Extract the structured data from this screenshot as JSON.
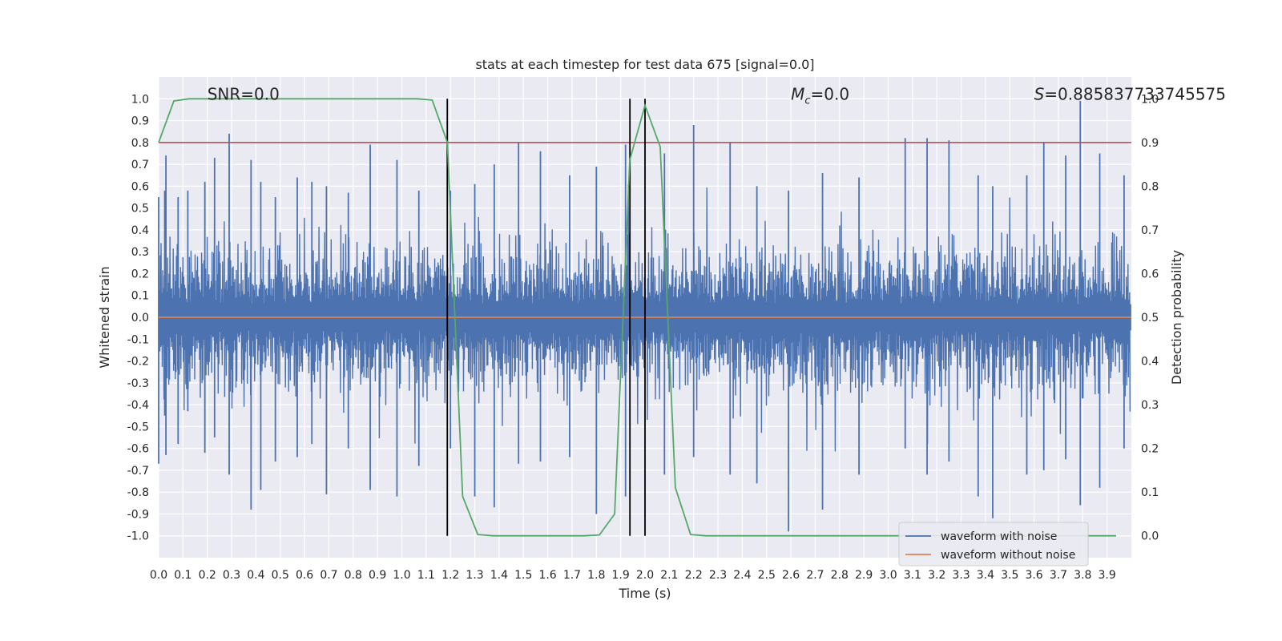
{
  "chart_data": {
    "type": "line",
    "title": "stats at each timestep for test data 675 [signal=0.0]",
    "xlabel": "Time (s)",
    "ylabel": "Whitened strain",
    "y2label": "Detection probability",
    "xlim": [
      0.0,
      4.0
    ],
    "ylim": [
      -1.1,
      1.1
    ],
    "y2lim": [
      -0.05,
      1.05
    ],
    "x_ticks": [
      0.0,
      0.1,
      0.2,
      0.3,
      0.4,
      0.5,
      0.6,
      0.7,
      0.8,
      0.9,
      1.0,
      1.1,
      1.2,
      1.3,
      1.4,
      1.5,
      1.6,
      1.7,
      1.8,
      1.9,
      2.0,
      2.1,
      2.2,
      2.3,
      2.4,
      2.5,
      2.6,
      2.7,
      2.8,
      2.9,
      3.0,
      3.1,
      3.2,
      3.3,
      3.4,
      3.5,
      3.6,
      3.7,
      3.8,
      3.9
    ],
    "x_tick_labels": [
      "0.0",
      "0.1",
      "0.2",
      "0.3",
      "0.4",
      "0.5",
      "0.6",
      "0.7",
      "0.8",
      "0.9",
      "1.0",
      "1.1",
      "1.2",
      "1.3",
      "1.4",
      "1.5",
      "1.6",
      "1.7",
      "1.8",
      "1.9",
      "2.0",
      "2.1",
      "2.2",
      "2.3",
      "2.4",
      "2.5",
      "2.6",
      "2.7",
      "2.8",
      "2.9",
      "3.0",
      "3.1",
      "3.2",
      "3.3",
      "3.4",
      "3.5",
      "3.6",
      "3.7",
      "3.8",
      "3.9"
    ],
    "y_ticks": [
      1.0,
      0.9,
      0.8,
      0.7,
      0.6,
      0.5,
      0.4,
      0.3,
      0.2,
      0.1,
      0.0,
      -0.1,
      -0.2,
      -0.3,
      -0.4,
      -0.5,
      -0.6,
      -0.7,
      -0.8,
      -0.9,
      -1.0
    ],
    "y_tick_labels": [
      "1.0",
      "0.9",
      "0.8",
      "0.7",
      "0.6",
      "0.5",
      "0.4",
      "0.3",
      "0.2",
      "0.1",
      "0.0",
      "-0.1",
      "-0.2",
      "-0.3",
      "-0.4",
      "-0.5",
      "-0.6",
      "-0.7",
      "-0.8",
      "-0.9",
      "-1.0"
    ],
    "y2_ticks": [
      1.0,
      0.9,
      0.8,
      0.7,
      0.6,
      0.5,
      0.4,
      0.3,
      0.2,
      0.1,
      0.0
    ],
    "y2_tick_labels": [
      "1.0",
      "0.9",
      "0.8",
      "0.7",
      "0.6",
      "0.5",
      "0.4",
      "0.3",
      "0.2",
      "0.1",
      "0.0"
    ],
    "annotations": [
      {
        "id": "snr",
        "text": "SNR=0.0",
        "x": 0.2,
        "y": 1.025
      },
      {
        "id": "mc",
        "text": "=0.0",
        "symbol": "M",
        "subscript": "c",
        "x": 2.6,
        "y": 1.025
      },
      {
        "id": "s",
        "text": "=0.885837733745575",
        "symbol": "S",
        "x": 3.6,
        "y": 1.025
      }
    ],
    "threshold": {
      "y": 0.8,
      "color": "#c44e52"
    },
    "vertical_lines": [
      1.187,
      1.938,
      2.0
    ],
    "series": [
      {
        "name": "waveform with noise",
        "color": "#4c72b0",
        "axis": "left",
        "envelope_peaks": [
          {
            "x": 0.0,
            "max": 0.55,
            "min": -0.67
          },
          {
            "x": 0.025,
            "max": 0.58,
            "min": -0.45
          },
          {
            "x": 0.03,
            "max": 0.74,
            "min": -0.63
          },
          {
            "x": 0.08,
            "max": 0.55,
            "min": -0.58
          },
          {
            "x": 0.12,
            "max": 0.58,
            "min": -0.43
          },
          {
            "x": 0.19,
            "max": 0.62,
            "min": -0.62
          },
          {
            "x": 0.23,
            "max": 0.73,
            "min": -0.55
          },
          {
            "x": 0.29,
            "max": 0.84,
            "min": -0.72
          },
          {
            "x": 0.38,
            "max": 0.72,
            "min": -0.88
          },
          {
            "x": 0.42,
            "max": 0.62,
            "min": -0.79
          },
          {
            "x": 0.48,
            "max": 0.55,
            "min": -0.66
          },
          {
            "x": 0.57,
            "max": 0.64,
            "min": -0.64
          },
          {
            "x": 0.63,
            "max": 0.62,
            "min": -0.58
          },
          {
            "x": 0.69,
            "max": 0.6,
            "min": -0.81
          },
          {
            "x": 0.78,
            "max": 0.57,
            "min": -0.6
          },
          {
            "x": 0.87,
            "max": 0.79,
            "min": -0.79
          },
          {
            "x": 0.98,
            "max": 0.72,
            "min": -0.82
          },
          {
            "x": 1.07,
            "max": 0.58,
            "min": -0.68
          },
          {
            "x": 1.2,
            "max": 0.58,
            "min": -0.6
          },
          {
            "x": 1.3,
            "max": 0.61,
            "min": -0.82
          },
          {
            "x": 1.38,
            "max": 0.7,
            "min": -0.87
          },
          {
            "x": 1.48,
            "max": 0.8,
            "min": -0.67
          },
          {
            "x": 1.57,
            "max": 0.76,
            "min": -0.66
          },
          {
            "x": 1.69,
            "max": 0.65,
            "min": -0.64
          },
          {
            "x": 1.8,
            "max": 0.69,
            "min": -0.9
          },
          {
            "x": 1.92,
            "max": 0.79,
            "min": -0.82
          },
          {
            "x": 2.08,
            "max": 0.75,
            "min": -0.72
          },
          {
            "x": 2.2,
            "max": 0.88,
            "min": -0.64
          },
          {
            "x": 2.35,
            "max": 0.8,
            "min": -0.72
          },
          {
            "x": 2.46,
            "max": 0.6,
            "min": -0.76
          },
          {
            "x": 2.59,
            "max": 0.58,
            "min": -0.98
          },
          {
            "x": 2.73,
            "max": 0.66,
            "min": -0.88
          },
          {
            "x": 2.88,
            "max": 0.64,
            "min": -0.72
          },
          {
            "x": 3.07,
            "max": 0.82,
            "min": -0.6
          },
          {
            "x": 3.16,
            "max": 0.82,
            "min": -0.72
          },
          {
            "x": 3.25,
            "max": 0.81,
            "min": -0.66
          },
          {
            "x": 3.37,
            "max": 0.65,
            "min": -0.82
          },
          {
            "x": 3.43,
            "max": 0.6,
            "min": -0.92
          },
          {
            "x": 3.57,
            "max": 0.65,
            "min": -0.72
          },
          {
            "x": 3.64,
            "max": 0.8,
            "min": -0.7
          },
          {
            "x": 3.73,
            "max": 0.74,
            "min": -0.65
          },
          {
            "x": 3.79,
            "max": 0.99,
            "min": -0.86
          },
          {
            "x": 3.87,
            "max": 0.75,
            "min": -0.78
          },
          {
            "x": 3.97,
            "max": 0.65,
            "min": -0.6
          }
        ]
      },
      {
        "name": "waveform without noise",
        "color": "#dd8452",
        "axis": "left",
        "x": [
          0.0,
          4.0
        ],
        "y": [
          0.0,
          0.0
        ]
      },
      {
        "name": "detection probability",
        "color": "#55a868",
        "axis": "right",
        "x": [
          0.0,
          0.0625,
          0.125,
          0.1875,
          0.25,
          0.3125,
          0.375,
          0.4375,
          0.5,
          0.5625,
          0.625,
          0.6875,
          0.75,
          0.8125,
          0.875,
          0.9375,
          1.0,
          1.0625,
          1.125,
          1.1875,
          1.25,
          1.3125,
          1.375,
          1.4375,
          1.5,
          1.5625,
          1.625,
          1.6875,
          1.75,
          1.8125,
          1.875,
          1.9375,
          2.0,
          2.0625,
          2.125,
          2.1875,
          2.25,
          2.3125,
          2.375,
          2.4375,
          2.5,
          2.5625,
          2.625,
          2.6875,
          2.75,
          2.8125,
          2.875,
          2.9375,
          3.0,
          3.0625,
          3.125,
          3.1875,
          3.25,
          3.3125,
          3.375,
          3.4375,
          3.5,
          3.5625,
          3.625,
          3.6875,
          3.75,
          3.8125,
          3.875,
          3.9375
        ],
        "y": [
          0.9,
          0.995,
          1.0,
          1.0,
          1.0,
          1.0,
          1.0,
          1.0,
          1.0,
          1.0,
          1.0,
          1.0,
          1.0,
          1.0,
          1.0,
          1.0,
          1.0,
          1.0,
          0.997,
          0.9,
          0.09,
          0.003,
          0.0,
          0.0,
          0.0,
          0.0,
          0.0,
          0.0,
          0.0,
          0.002,
          0.05,
          0.86,
          0.985,
          0.89,
          0.11,
          0.003,
          0.0,
          0.0,
          0.0,
          0.0,
          0.0,
          0.0,
          0.0,
          0.0,
          0.0,
          0.0,
          0.0,
          0.0,
          0.0,
          0.0,
          0.0,
          0.0,
          0.0,
          0.0,
          0.0,
          0.0,
          0.0,
          0.0,
          0.0,
          0.0,
          0.0,
          0.0,
          0.0,
          0.0
        ]
      }
    ],
    "legend": {
      "placement": "bottom-right",
      "entries": [
        {
          "label": "waveform with noise",
          "color": "#4c72b0"
        },
        {
          "label": "waveform without noise",
          "color": "#dd8452"
        }
      ]
    },
    "colors": {
      "background": "#eaeaf2",
      "grid": "#ffffff"
    }
  }
}
